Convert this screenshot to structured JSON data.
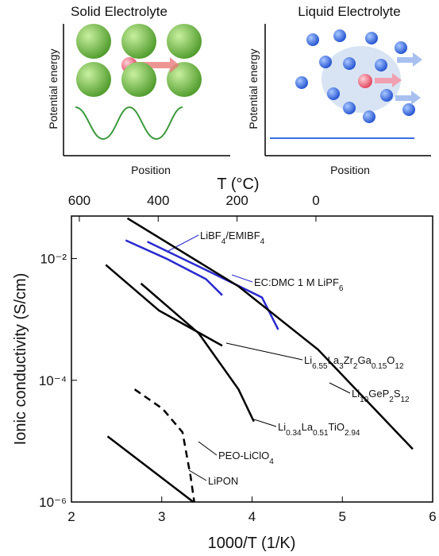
{
  "panels": [
    {
      "title": "Solid Electrolyte",
      "ylabel": "Potential energy",
      "xlabel": "Position"
    },
    {
      "title": "Liquid Electrolyte",
      "ylabel": "Potential energy",
      "xlabel": "Position"
    }
  ],
  "chart_data": {
    "type": "line",
    "xlabel": "1000/T (1/K)",
    "ylabel": "Ionic conductivity (S/cm)",
    "x2label": "T (°C)",
    "xlim": [
      2,
      6
    ],
    "xticks": [
      2,
      3,
      4,
      5,
      6
    ],
    "ylim": [
      1e-06,
      0.05
    ],
    "ylog": true,
    "yticks": [
      {
        "value": 1e-06,
        "label": "10⁻⁶"
      },
      {
        "value": 0.0001,
        "label": "10⁻⁴"
      },
      {
        "value": 0.01,
        "label": "10⁻²"
      }
    ],
    "x2lim": [
      620,
      -296
    ],
    "x2ticks": [
      600,
      400,
      200,
      0
    ],
    "series": [
      {
        "name": "LiBF4/EMIBF4",
        "color": "#2a2ad0",
        "x": [
          2.6,
          3.05,
          3.49,
          3.67
        ],
        "values": [
          0.02,
          0.01,
          0.0046,
          0.0025
        ]
      },
      {
        "name": "EC:DMC 1 M LiPF6",
        "color": "#2a2ad0",
        "x": [
          2.84,
          3.58,
          4.11,
          4.29
        ],
        "values": [
          0.019,
          0.0056,
          0.0023,
          0.00068
        ]
      },
      {
        "name": "Li6.55La3Zr2Ga0.15O12",
        "color": "#000000",
        "x": [
          2.38,
          2.97,
          3.67
        ],
        "values": [
          0.0079,
          0.0014,
          0.00037
        ]
      },
      {
        "name": "Li10GeP2S12",
        "color": "#000000",
        "x": [
          2.62,
          3.85,
          4.73,
          5.78
        ],
        "values": [
          0.046,
          0.0035,
          0.00032,
          7.4e-06
        ]
      },
      {
        "name": "Li0.34La0.51TiO2.94",
        "color": "#000000",
        "x": [
          2.77,
          3.41,
          3.85,
          4.02
        ],
        "values": [
          0.0039,
          0.00059,
          7.1e-05,
          2.1e-05
        ]
      },
      {
        "name": "PEO-LiClO4",
        "color": "#000000",
        "dashed": true,
        "x": [
          2.7,
          3.01,
          3.23,
          3.32,
          3.36
        ],
        "values": [
          7.1e-05,
          3.4e-05,
          1.4e-05,
          2.6e-06,
          1e-06
        ]
      },
      {
        "name": "LiPON",
        "color": "#000000",
        "x": [
          2.4,
          3.35
        ],
        "values": [
          1.2e-05,
          1e-06
        ]
      }
    ]
  }
}
